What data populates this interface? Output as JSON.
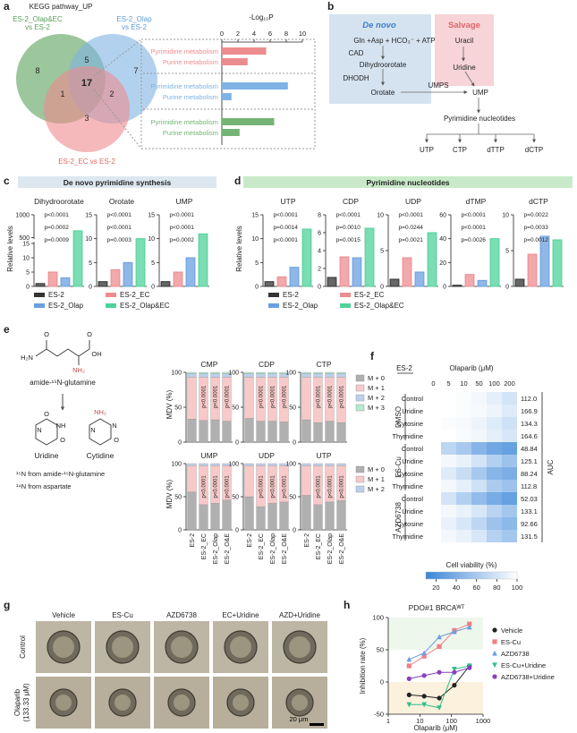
{
  "panel_labels": [
    "a",
    "b",
    "c",
    "d",
    "e",
    "f",
    "g",
    "h"
  ],
  "a": {
    "title": "KEGG pathway_UP",
    "set_labels": [
      [
        "ES-2_Olap&EC",
        "vs ES-2"
      ],
      [
        "ES-2_Olap",
        "vs ES-2"
      ],
      [
        "ES-2_EC vs ES-2"
      ]
    ],
    "counts": [
      8,
      5,
      7,
      1,
      17,
      2,
      3
    ],
    "chart": {
      "type": "bar",
      "x_label": "-Log₁₀P",
      "categories": [
        "Pyrimidine metabolism",
        "Purine metabolism",
        "Pyrimidine metabolism",
        "Purine metabolism",
        "Pyrimidine metabolism",
        "Purine metabolism"
      ],
      "values": [
        5.5,
        3.2,
        8.2,
        1.2,
        6.5,
        2.2
      ],
      "colors": [
        "#ec8c8f",
        "#ec8c8f",
        "#7fb2e5",
        "#7fb2e5",
        "#74b474",
        "#74b474"
      ],
      "xlim": [
        0,
        10
      ],
      "xticks": [
        0,
        2,
        4,
        6,
        8,
        10
      ]
    }
  },
  "b": {
    "de_novo": "De novo",
    "salvage": "Salvage",
    "nodes": [
      "Gln +Asp + HCO₃⁻ + ATP",
      "CAD",
      "Dihydroorotate",
      "DHODH",
      "Orotate",
      "UMPS",
      "UMP",
      "Uracil",
      "Uridine",
      "Pyrimidine nucleotides",
      "UTP",
      "CTP",
      "dTTP",
      "dCTP"
    ]
  },
  "c": {
    "title": "De novo pyrimidine synthesis",
    "y_label": "Relative levels",
    "legend": [
      "ES-2",
      "ES-2_EC",
      "ES-2_Olap",
      "ES-2_Olap&EC"
    ],
    "colors": [
      "#333333",
      "#ec8c8f",
      "#6a9fe0",
      "#4fd19a"
    ],
    "charts": [
      {
        "type": "bar",
        "title": "Dihydroorotate",
        "values": [
          1,
          5,
          3,
          650
        ],
        "ylim": [
          0,
          1000
        ],
        "ybreak": [
          15,
          500
        ],
        "yticks": [
          0,
          5,
          10,
          15,
          500,
          1000
        ],
        "pvalues": [
          "p<0.0001",
          "p=0.0002",
          "p=0.0009"
        ]
      },
      {
        "type": "bar",
        "title": "Orotate",
        "values": [
          1,
          3.5,
          5,
          10
        ],
        "ylim": [
          0,
          15
        ],
        "yticks": [
          0,
          5,
          10,
          15
        ],
        "pvalues": [
          "p<0.0001",
          "p<0.0001",
          "p=0.0003"
        ]
      },
      {
        "type": "bar",
        "title": "UMP",
        "values": [
          1,
          3,
          6,
          11
        ],
        "ylim": [
          0,
          15
        ],
        "yticks": [
          0,
          5,
          10,
          15
        ],
        "pvalues": [
          "p<0.0001",
          "p<0.0001",
          "p=0.0002"
        ]
      }
    ]
  },
  "d": {
    "title": "Pyrimidine nucleotides",
    "y_label": "Relative levels",
    "legend": [
      "ES-2",
      "ES-2_EC",
      "ES-2_Olap",
      "ES-2_Olap&EC"
    ],
    "colors": [
      "#333333",
      "#ec8c8f",
      "#6a9fe0",
      "#4fd19a"
    ],
    "charts": [
      {
        "type": "bar",
        "title": "UTP",
        "values": [
          1,
          2,
          4,
          12
        ],
        "ylim": [
          0,
          15
        ],
        "yticks": [
          0,
          5,
          10,
          15
        ],
        "pvalues": [
          "p<0.0001",
          "p=0.0014",
          "p<0.0001"
        ]
      },
      {
        "type": "bar",
        "title": "CDP",
        "values": [
          1,
          3.3,
          3.2,
          6.5
        ],
        "ylim": [
          0,
          8
        ],
        "yticks": [
          0,
          2,
          4,
          6,
          8
        ],
        "pvalues": [
          "p<0.0001",
          "p=0.0010",
          "p=0.0015"
        ]
      },
      {
        "type": "bar",
        "title": "UDP",
        "values": [
          1,
          4,
          2,
          7.5
        ],
        "ylim": [
          0,
          10
        ],
        "yticks": [
          0,
          5,
          10
        ],
        "pvalues": [
          "p<0.0001",
          "p=0.0244",
          "p=0.0021"
        ]
      },
      {
        "type": "bar",
        "title": "dTMP",
        "values": [
          1,
          10,
          5,
          40
        ],
        "ylim": [
          0,
          60
        ],
        "yticks": [
          0,
          20,
          40,
          60
        ],
        "pvalues": [
          "p<0.0001",
          "p<0.0001",
          "p=0.0026"
        ]
      },
      {
        "type": "bar",
        "title": "dCTP",
        "values": [
          1,
          4.5,
          7,
          6.5
        ],
        "ylim": [
          0,
          10
        ],
        "yticks": [
          0,
          5,
          10
        ],
        "pvalues": [
          "p=0.0022",
          "p=0.0033",
          "p=0.0012"
        ]
      }
    ]
  },
  "e": {
    "y_label": "MDV (%)",
    "ylim": [
      0,
      100
    ],
    "yticks": [
      0,
      50,
      100
    ],
    "categories": [
      "ES-2",
      "ES-2_EC",
      "ES-2_Olap",
      "ES-2_O&E"
    ],
    "legend": [
      "M + 0",
      "M + 1",
      "M + 2",
      "M + 3"
    ],
    "colors": [
      "#b0b0b0",
      "#f7c9c9",
      "#bcd0ee",
      "#b5ead0"
    ],
    "charts": [
      {
        "type": "stacked_bar",
        "title": "CMP",
        "series": [
          [
            33,
            31,
            32,
            30
          ],
          [
            60,
            62,
            61,
            63
          ],
          [
            5,
            5,
            5,
            5
          ],
          [
            2,
            2,
            2,
            2
          ]
        ],
        "pvalues": [
          "p<0.0001",
          "p<0.0001",
          "p<0.0001"
        ]
      },
      {
        "type": "stacked_bar",
        "title": "CDP",
        "series": [
          [
            34,
            30,
            30,
            29
          ],
          [
            59,
            63,
            63,
            64
          ],
          [
            5,
            5,
            5,
            5
          ],
          [
            2,
            2,
            2,
            2
          ]
        ],
        "pvalues": [
          "p<0.0001",
          "p<0.0001",
          "p<0.0001"
        ]
      },
      {
        "type": "stacked_bar",
        "title": "CTP",
        "series": [
          [
            32,
            28,
            30,
            28
          ],
          [
            61,
            65,
            63,
            65
          ],
          [
            5,
            5,
            5,
            5
          ],
          [
            2,
            2,
            2,
            2
          ]
        ],
        "pvalues": [
          "p<0.0001",
          "p<0.0001",
          "p<0.0001"
        ]
      },
      {
        "type": "stacked_bar",
        "title": "UMP",
        "series": [
          [
            57,
            38,
            40,
            45
          ],
          [
            40,
            59,
            57,
            52
          ],
          [
            3,
            3,
            3,
            3
          ]
        ],
        "pvalues": [
          "p<0.0001",
          "p<0.0001",
          "p<0.0001"
        ]
      },
      {
        "type": "stacked_bar",
        "title": "UDP",
        "series": [
          [
            50,
            35,
            40,
            42
          ],
          [
            47,
            62,
            57,
            55
          ],
          [
            3,
            3,
            3,
            3
          ]
        ],
        "pvalues": [
          "p<0.0001",
          "p<0.0001",
          "p<0.0001"
        ]
      },
      {
        "type": "stacked_bar",
        "title": "UTP",
        "series": [
          [
            52,
            38,
            42,
            44
          ],
          [
            45,
            59,
            55,
            53
          ],
          [
            3,
            3,
            3,
            3
          ]
        ],
        "pvalues": [
          "p<0.0001",
          "p<0.0001",
          "p<0.0001"
        ]
      }
    ],
    "chem": {
      "atoms": [
        "H₂N",
        "O",
        "O",
        "OH",
        "NH₂",
        "O",
        "NH",
        "O",
        "N",
        "NH₂",
        "O",
        "N",
        "N"
      ],
      "glutamine": "amide-¹⁵N-glutamine",
      "uridine": "Uridine",
      "cytidine": "Cytidine",
      "notes": [
        "¹⁵N from amide-¹⁵N-glutamine",
        "¹⁴N from aspartate"
      ]
    }
  },
  "f": {
    "type": "heatmap",
    "cell_line": "ES-2",
    "x_label": "Olaparib (μM)",
    "doses": [
      0,
      5,
      10,
      50,
      100,
      200
    ],
    "groups": [
      "DMSO",
      "ES-Cu",
      "AZD6738"
    ],
    "rows": [
      "Control",
      "Uridine",
      "Cytosine",
      "Thymidine"
    ],
    "values": [
      [
        [
          100,
          100,
          98,
          95,
          88,
          80
        ],
        [
          100,
          100,
          98,
          96,
          92,
          85
        ],
        [
          100,
          98,
          96,
          92,
          85,
          78
        ],
        [
          100,
          100,
          97,
          94,
          88,
          82
        ]
      ],
      [
        [
          100,
          70,
          60,
          45,
          35,
          30
        ],
        [
          100,
          95,
          90,
          80,
          65,
          55
        ],
        [
          100,
          85,
          75,
          60,
          45,
          40
        ],
        [
          100,
          95,
          88,
          78,
          62,
          55
        ]
      ],
      [
        [
          100,
          80,
          65,
          50,
          38,
          30
        ],
        [
          100,
          95,
          90,
          82,
          68,
          58
        ],
        [
          100,
          90,
          82,
          70,
          55,
          48
        ],
        [
          100,
          95,
          90,
          82,
          66,
          58
        ]
      ]
    ],
    "auc_title": "AUC",
    "auc": [
      [
        112.0,
        166.9,
        134.3,
        164.6
      ],
      [
        48.84,
        125.1,
        88.24,
        112.8
      ],
      [
        52.03,
        133.1,
        92.66,
        131.5
      ]
    ],
    "auc_labels": [
      [
        "112.0",
        "166.9",
        "134.3",
        "164.6"
      ],
      [
        "48.84",
        "125.1",
        "88.24",
        "112.8"
      ],
      [
        "52.03",
        "133.1",
        "92.66",
        "131.5"
      ]
    ],
    "colorbar_label": "Cell viability (%)",
    "clim": [
      10,
      100
    ],
    "colorbar_ticks": [
      20,
      40,
      60,
      80,
      100
    ],
    "colormap": [
      "#3a86d8",
      "#ffffff"
    ]
  },
  "g": {
    "columns": [
      "Vehicle",
      "ES-Cu",
      "AZD6738",
      "EC+Uridine",
      "AZD+Uridine"
    ],
    "rows": [
      [
        "Control"
      ],
      [
        "Olaparib",
        "(133.33 μM)"
      ]
    ],
    "scale_bar": "20 μm"
  },
  "h": {
    "type": "line",
    "title": "PDO#1 BRCAᵂᵀ",
    "y_label": "Inhibition rate (%)",
    "x_label": "Olaparib (μM)",
    "log_x": true,
    "x": [
      4.57,
      13.7,
      41.2,
      123.5,
      370.4
    ],
    "xlim": [
      1,
      1000
    ],
    "xticks": [
      1,
      10,
      100,
      1000
    ],
    "ylim": [
      -50,
      100
    ],
    "yticks": [
      -50,
      0,
      50,
      100
    ],
    "series": [
      {
        "name": "Vehicle",
        "color": "#222222",
        "marker": "circle",
        "values": [
          -20,
          -22,
          -25,
          -5,
          25
        ]
      },
      {
        "name": "ES-Cu",
        "color": "#f07f86",
        "marker": "square",
        "values": [
          25,
          40,
          55,
          80,
          90
        ]
      },
      {
        "name": "AZD6738",
        "color": "#6a9fe0",
        "marker": "triangle",
        "values": [
          35,
          45,
          70,
          78,
          85
        ]
      },
      {
        "name": "ES-Cu+Uridine",
        "color": "#2fbf8a",
        "marker": "triangle-down",
        "values": [
          -35,
          -35,
          -40,
          20,
          25
        ]
      },
      {
        "name": "AZD6738+Uridine",
        "color": "#8a3fbf",
        "marker": "circle",
        "values": [
          5,
          10,
          15,
          15,
          22
        ]
      }
    ]
  }
}
